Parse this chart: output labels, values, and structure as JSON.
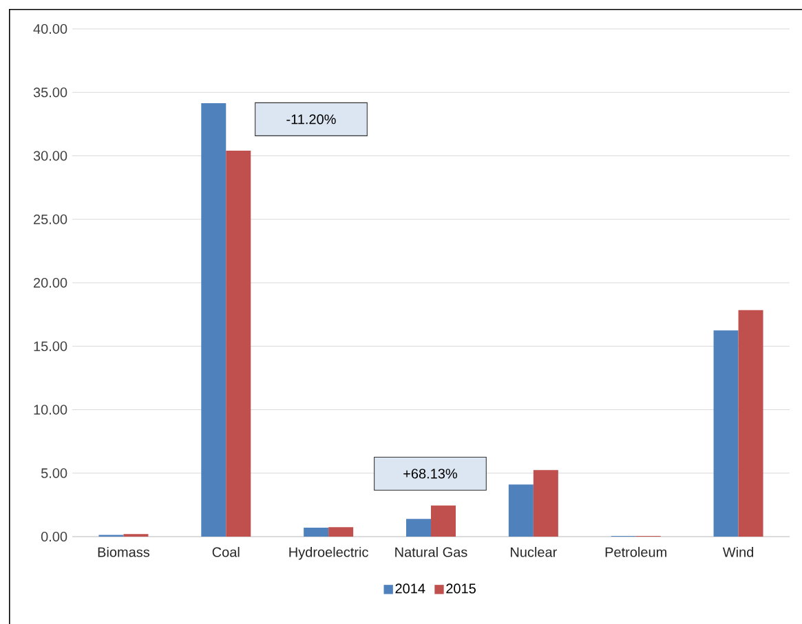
{
  "chart_data": {
    "type": "bar",
    "categories": [
      "Biomass",
      "Coal",
      "Hydroelectric",
      "Natural Gas",
      "Nuclear",
      "Petroleum",
      "Wind"
    ],
    "series": [
      {
        "name": "2014",
        "color": "#4f81bd",
        "values": [
          0.13,
          34.15,
          0.7,
          1.4,
          4.1,
          0.05,
          16.25
        ]
      },
      {
        "name": "2015",
        "color": "#c0504d",
        "values": [
          0.2,
          30.4,
          0.75,
          2.45,
          5.25,
          0.05,
          17.85
        ]
      }
    ],
    "ylim": [
      0,
      40
    ],
    "yticks": [
      {
        "value": 0,
        "label": "0.00"
      },
      {
        "value": 5,
        "label": "5.00"
      },
      {
        "value": 10,
        "label": "10.00"
      },
      {
        "value": 15,
        "label": "15.00"
      },
      {
        "value": 20,
        "label": "20.00"
      },
      {
        "value": 25,
        "label": "25.00"
      },
      {
        "value": 30,
        "label": "30.00"
      },
      {
        "value": 35,
        "label": "35.00"
      },
      {
        "value": 40,
        "label": "40.00"
      }
    ],
    "annotations": [
      "-11.20%",
      "+68.13%"
    ],
    "grid": "y",
    "legend": "bottom"
  }
}
